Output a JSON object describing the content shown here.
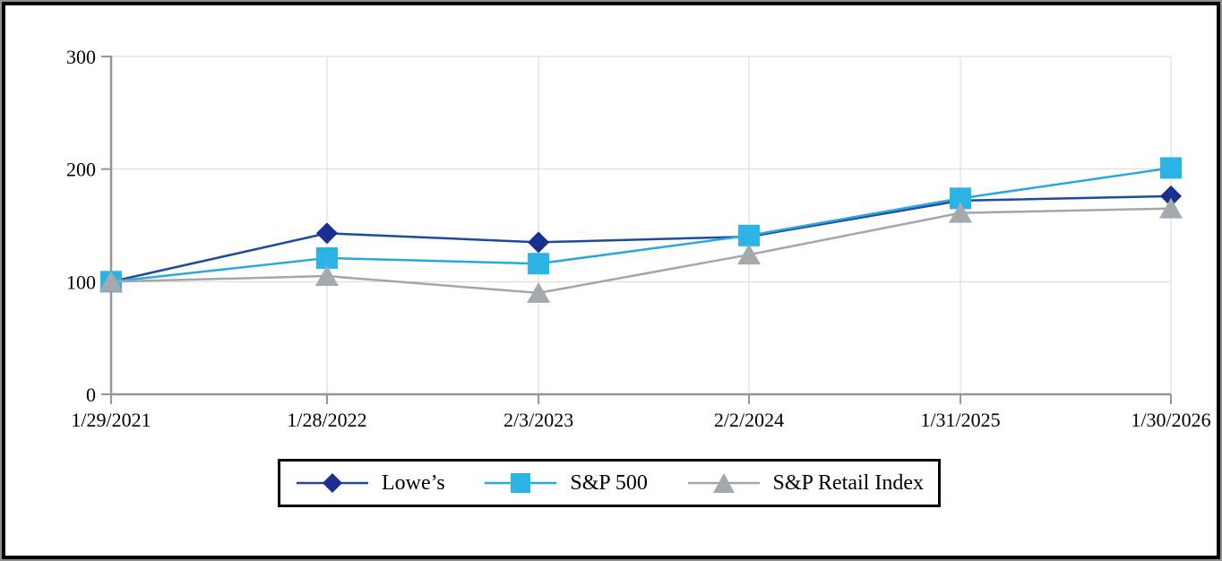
{
  "chart_data": {
    "type": "line",
    "categories": [
      "1/29/2021",
      "1/28/2022",
      "2/3/2023",
      "2/2/2024",
      "1/31/2025",
      "1/30/2026"
    ],
    "series": [
      {
        "name": "Lowe’s",
        "marker": "diamond",
        "line_color": "#1E4B9B",
        "marker_color": "#1A2F8F",
        "values": [
          100,
          143,
          135,
          140,
          172,
          176
        ]
      },
      {
        "name": "S&P 500",
        "marker": "square",
        "line_color": "#29A8DF",
        "marker_color": "#2BB3E6",
        "values": [
          100,
          121,
          116,
          141,
          174,
          201
        ]
      },
      {
        "name": "S&P Retail Index",
        "marker": "triangle",
        "line_color": "#A6A6A6",
        "marker_color": "#A4A9AE",
        "values": [
          100,
          105,
          90,
          124,
          161,
          165
        ]
      }
    ],
    "y_ticks": [
      0,
      100,
      200,
      300
    ],
    "ylim": [
      0,
      300
    ],
    "grid": true,
    "legend_position": "bottom",
    "axis_color": "#969696",
    "gridline_color": "#D9D9D9",
    "text_color": "#000000",
    "background_color": "#FFFFFF"
  }
}
